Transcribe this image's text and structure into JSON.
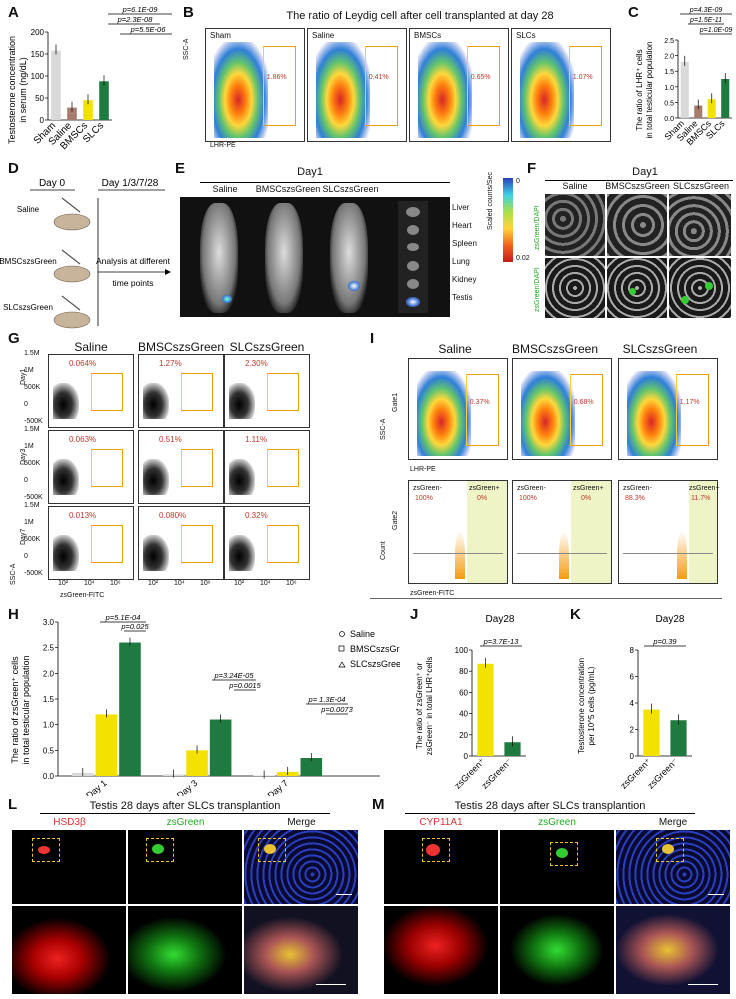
{
  "panels": {
    "A": {
      "label": "A",
      "ylabel_1": "Testosterone concentration",
      "ylabel_2": "in serum (ng/dL)",
      "pvals": [
        "p=6.1E-09",
        "p=2.3E-08",
        "p=5.5E-06"
      ]
    },
    "B": {
      "label": "B",
      "title": "The ratio of  Leydig cell after cell transplanted at day 28",
      "ylabel": "SSC-A",
      "xlabel": "LHR-PE",
      "plots": [
        {
          "name": "Sham",
          "pct": "1.86%"
        },
        {
          "name": "Saline",
          "pct": "0.41%"
        },
        {
          "name": "BMSCs",
          "pct": "0.65%"
        },
        {
          "name": "SLCs",
          "pct": "1.07%"
        }
      ]
    },
    "C": {
      "label": "C",
      "ylabel_1": "The ratio of LHR⁺ cells",
      "ylabel_2": "in total testicular population",
      "pvals": [
        "p=4.3E-09",
        "p=1.5E-11",
        "p=1.0E-09"
      ]
    },
    "D": {
      "label": "D",
      "day0": "Day 0",
      "days": "Day 1/3/7/28",
      "groups": [
        "Saline",
        "BMSCszsGreen",
        "SLCszsGreen"
      ],
      "analysis_1": "Analysis at different",
      "analysis_2": "time points"
    },
    "E": {
      "label": "E",
      "title": "Day1",
      "cols": [
        "Saline",
        "BMSCszsGreen",
        "SLCszsGreen"
      ],
      "organs": [
        "Liver",
        "Heart",
        "Spleen",
        "Lung",
        "Kidney",
        "Testis"
      ],
      "scale_label": "Scaled counts/Sec",
      "scale_max": "0",
      "scale_min": "0.02"
    },
    "F": {
      "label": "F",
      "title": "Day1",
      "cols": [
        "Saline",
        "BMSCszsGreen",
        "SLCszsGreen"
      ],
      "rowlabel": "zsGreen/DAPI"
    },
    "G": {
      "label": "G",
      "cols": [
        "Saline",
        "BMSCszsGreen",
        "SLCszsGreen"
      ],
      "rows": [
        "Day1",
        "Day3",
        "Day7"
      ],
      "pcts": [
        [
          "0.064%",
          "1.27%",
          "2.30%"
        ],
        [
          "0.063%",
          "0.51%",
          "1.11%"
        ],
        [
          "0.013%",
          "0.080%",
          "0.32%"
        ]
      ],
      "ylabel": "SSC-A",
      "xlabel": "zsGreen-FITC",
      "yticks": [
        "1.5M",
        "1M",
        "500K",
        "0",
        "-500K"
      ],
      "xticks": [
        "10²",
        "10⁴",
        "10⁶"
      ]
    },
    "H": {
      "label": "H",
      "ylabel_1": "The ratio of zsGreen⁺ cells",
      "ylabel_2": "in total testicular population",
      "legend": [
        "Saline",
        "BMSCszsGreen",
        "SLCszsGreen"
      ],
      "pvals": [
        "p=5.1E-04",
        "p=0.025",
        "p=3.24E-05",
        "p=0.0015",
        "p= 1.3E-04",
        "p=0.0073"
      ]
    },
    "I": {
      "label": "I",
      "cols": [
        "Saline",
        "BMSCszsGreen",
        "SLCszsGreen"
      ],
      "pcts": [
        "0.37%",
        "0.68%",
        "1.17%"
      ],
      "gate1": "Gate1",
      "gate2": "Gate2",
      "ylabel_top": "SSC-A",
      "xlabel_top": "LHR-PE",
      "ylabel_bot": "Count",
      "xlabel_bot": "zsGreen-FITC",
      "neg": [
        "zsGreen-",
        "zsGreen-",
        "zsGreen-"
      ],
      "pos": [
        "zsGreen+",
        "zsGreen+",
        "zsGreen+"
      ],
      "neg_pct": [
        "100%",
        "100%",
        "88.3%"
      ],
      "pos_pct": [
        "0%",
        "0%",
        "11.7%"
      ]
    },
    "J": {
      "label": "J",
      "title": "Day28",
      "ylabel_1": "The ratio of zsGreen⁺ or",
      "ylabel_2": "zsGreen⁻ in total LHR⁺cells",
      "pval": "p=3.7E-13",
      "cats": [
        "zsGreen⁺",
        "zsGreen⁻"
      ]
    },
    "K": {
      "label": "K",
      "title": "Day28",
      "ylabel_1": "Testosterone concentration",
      "ylabel_2": "per 10^5 cells (pg/mL)",
      "pval": "p=0.39",
      "cats": [
        "zsGreen⁺",
        "zsGreen⁻"
      ]
    },
    "L": {
      "label": "L",
      "title": "Testis 28 days after SLCs transplantion",
      "channels": [
        "HSD3β",
        "zsGreen",
        "Merge"
      ]
    },
    "M": {
      "label": "M",
      "title": "Testis 28 days after SLCs transplantion",
      "channels": [
        "CYP11A1",
        "zsGreen",
        "Merge"
      ]
    }
  },
  "chart_data": [
    {
      "type": "bar",
      "panel": "A",
      "categories": [
        "Sham",
        "Saline",
        "BMSCs",
        "SLCs"
      ],
      "values": [
        158,
        28,
        45,
        88
      ],
      "ylim": [
        0,
        200
      ],
      "yticks": [
        0,
        50,
        100,
        150,
        200
      ],
      "colors": [
        "#d9d9d9",
        "#a67c6d",
        "#f3e200",
        "#1f7a3f"
      ]
    },
    {
      "type": "bar",
      "panel": "C",
      "categories": [
        "Sham",
        "Saline",
        "BMSCs",
        "SLCs"
      ],
      "values": [
        1.8,
        0.4,
        0.6,
        1.25
      ],
      "ylim": [
        0,
        2.5
      ],
      "yticks": [
        0.0,
        0.5,
        1.0,
        1.5,
        2.0,
        2.5
      ],
      "colors": [
        "#d9d9d9",
        "#a67c6d",
        "#f3e200",
        "#1f7a3f"
      ]
    },
    {
      "type": "bar",
      "panel": "H",
      "categories": [
        "Day 1",
        "Day 3",
        "Day 7"
      ],
      "series": [
        {
          "name": "Saline",
          "values": [
            0.06,
            0.03,
            0.01
          ]
        },
        {
          "name": "BMSCszsGreen",
          "values": [
            1.2,
            0.5,
            0.08
          ]
        },
        {
          "name": "SLCszsGreen",
          "values": [
            2.6,
            1.1,
            0.35
          ]
        }
      ],
      "yticks": [
        "0.0",
        "0.5",
        "1.0",
        "1.5",
        "2.0",
        "2.5",
        "3.0"
      ],
      "colors": [
        "#d9d9d9",
        "#f3e200",
        "#1f7a3f"
      ]
    },
    {
      "type": "bar",
      "panel": "J",
      "categories": [
        "zsGreen⁺",
        "zsGreen⁻"
      ],
      "values": [
        87,
        13
      ],
      "ylim": [
        0,
        100
      ],
      "yticks": [
        0,
        20,
        40,
        60,
        80,
        100
      ],
      "colors": [
        "#f3e200",
        "#1f7a3f"
      ]
    },
    {
      "type": "bar",
      "panel": "K",
      "categories": [
        "zsGreen⁺",
        "zsGreen⁻"
      ],
      "values": [
        3.5,
        2.7
      ],
      "ylim": [
        0,
        8
      ],
      "yticks": [
        0,
        2,
        4,
        6,
        8
      ],
      "colors": [
        "#f3e200",
        "#1f7a3f"
      ]
    }
  ]
}
